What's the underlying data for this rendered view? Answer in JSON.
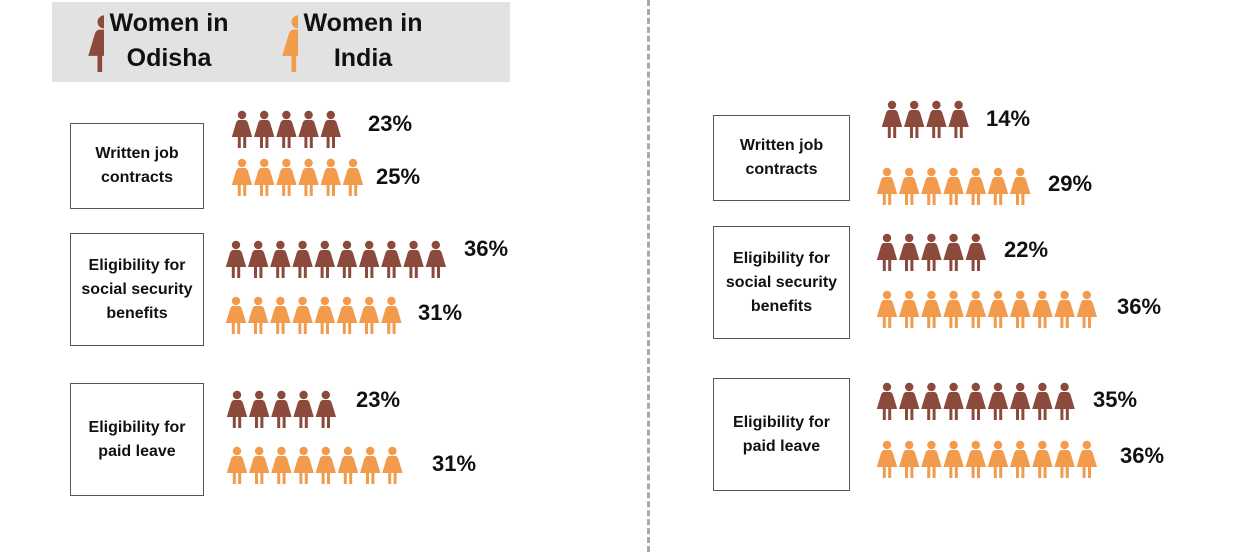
{
  "colors": {
    "odisha": "#8b4a3c",
    "india": "#f39b4d"
  },
  "legend": [
    {
      "label": "Women in\nOdisha",
      "color": "#8b4a3c",
      "icon": "woman-icon"
    },
    {
      "label": "Women in\nIndia",
      "color": "#f39b4d",
      "icon": "woman-icon"
    }
  ],
  "chart_data": [
    {
      "type": "pictograph",
      "series_names": [
        "Women in Odisha",
        "Women in India"
      ],
      "rows": [
        {
          "category": "Written job\ncontracts",
          "values": [
            23,
            25
          ],
          "labels": [
            "23%",
            "25%"
          ],
          "icon_counts": [
            5,
            6
          ]
        },
        {
          "category": "Eligibility for\nsocial security\nbenefits",
          "values": [
            36,
            31
          ],
          "labels": [
            "36%",
            "31%"
          ],
          "icon_counts": [
            10,
            8
          ]
        },
        {
          "category": "Eligibility for\npaid leave",
          "values": [
            23,
            31
          ],
          "labels": [
            "23%",
            "31%"
          ],
          "icon_counts": [
            5,
            8
          ]
        }
      ]
    },
    {
      "type": "pictograph",
      "series_names": [
        "Women in Odisha",
        "Women in India"
      ],
      "rows": [
        {
          "category": "Written job\ncontracts",
          "values": [
            14,
            29
          ],
          "labels": [
            "14%",
            "29%"
          ],
          "icon_counts": [
            4,
            7
          ]
        },
        {
          "category": "Eligibility for\nsocial security\nbenefits",
          "values": [
            22,
            36
          ],
          "labels": [
            "22%",
            "36%"
          ],
          "icon_counts": [
            5,
            10
          ]
        },
        {
          "category": "Eligibility for\npaid leave",
          "values": [
            35,
            36
          ],
          "labels": [
            "35%",
            "36%"
          ],
          "icon_counts": [
            9,
            10
          ]
        }
      ]
    }
  ]
}
